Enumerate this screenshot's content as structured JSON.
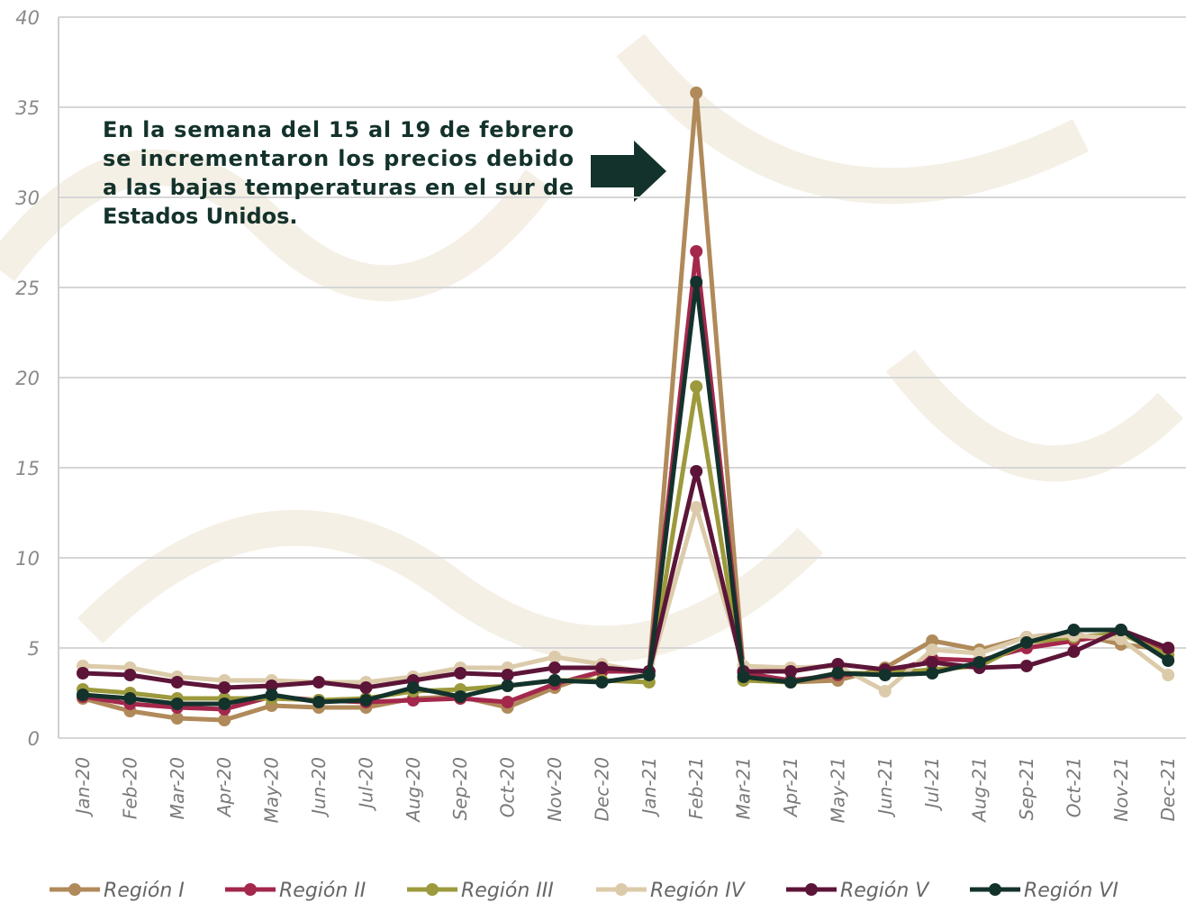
{
  "chart_data": {
    "type": "line",
    "annotation": [
      "En la semana del 15 al 19 de febrero",
      "se incrementaron los precios debido",
      "a las bajas temperaturas en el sur de",
      "Estados Unidos."
    ],
    "categories": [
      "Jan-20",
      "Feb-20",
      "Mar-20",
      "Apr-20",
      "May-20",
      "Jun-20",
      "Jul-20",
      "Aug-20",
      "Sep-20",
      "Oct-20",
      "Nov-20",
      "Dec-20",
      "Jan-21",
      "Feb-21",
      "Mar-21",
      "Apr-21",
      "May-21",
      "Jun-21",
      "Jul-21",
      "Aug-21",
      "Sep-21",
      "Oct-21",
      "Nov-21",
      "Dec-21"
    ],
    "series": [
      {
        "name": "Región I",
        "color": "#b08a5a",
        "values": [
          2.2,
          1.5,
          1.1,
          1.0,
          1.8,
          1.7,
          1.7,
          2.2,
          2.3,
          1.7,
          2.8,
          3.7,
          3.7,
          35.8,
          3.7,
          3.1,
          3.2,
          3.9,
          5.4,
          4.9,
          5.6,
          5.8,
          5.2,
          4.9
        ]
      },
      {
        "name": "Región II",
        "color": "#a3284c",
        "values": [
          2.3,
          1.9,
          1.7,
          1.6,
          2.3,
          2.1,
          2.0,
          2.1,
          2.2,
          2.0,
          3.0,
          3.7,
          3.7,
          27.0,
          3.6,
          3.2,
          3.5,
          3.6,
          4.4,
          4.3,
          5.0,
          5.4,
          5.8,
          4.9
        ]
      },
      {
        "name": "Región III",
        "color": "#9c9a3c",
        "values": [
          2.7,
          2.5,
          2.2,
          2.2,
          2.2,
          2.1,
          2.2,
          2.6,
          2.7,
          2.9,
          3.2,
          3.2,
          3.1,
          19.5,
          3.2,
          3.1,
          3.6,
          3.6,
          3.8,
          4.0,
          5.3,
          5.6,
          5.8,
          4.6
        ]
      },
      {
        "name": "Región IV",
        "color": "#dccbaa",
        "values": [
          4.0,
          3.9,
          3.4,
          3.2,
          3.2,
          3.1,
          3.1,
          3.4,
          3.9,
          3.9,
          4.5,
          4.1,
          3.6,
          12.8,
          4.0,
          3.9,
          4.0,
          2.6,
          4.9,
          4.7,
          5.6,
          5.7,
          5.5,
          3.5
        ]
      },
      {
        "name": "Región V",
        "color": "#5c1538",
        "values": [
          3.6,
          3.5,
          3.1,
          2.8,
          2.9,
          3.1,
          2.8,
          3.2,
          3.6,
          3.5,
          3.9,
          3.9,
          3.7,
          14.8,
          3.7,
          3.7,
          4.1,
          3.8,
          4.2,
          3.9,
          4.0,
          4.8,
          6.0,
          5.0
        ]
      },
      {
        "name": "Región VI",
        "color": "#13322b",
        "values": [
          2.4,
          2.2,
          1.9,
          1.9,
          2.4,
          2.0,
          2.1,
          2.8,
          2.3,
          2.9,
          3.2,
          3.1,
          3.5,
          25.3,
          3.4,
          3.1,
          3.6,
          3.5,
          3.6,
          4.2,
          5.3,
          6.0,
          6.0,
          4.3
        ]
      }
    ],
    "ylim": [
      0,
      40
    ],
    "yticks": [
      0,
      5,
      10,
      15,
      20,
      25,
      30,
      35,
      40
    ],
    "grid": true
  }
}
